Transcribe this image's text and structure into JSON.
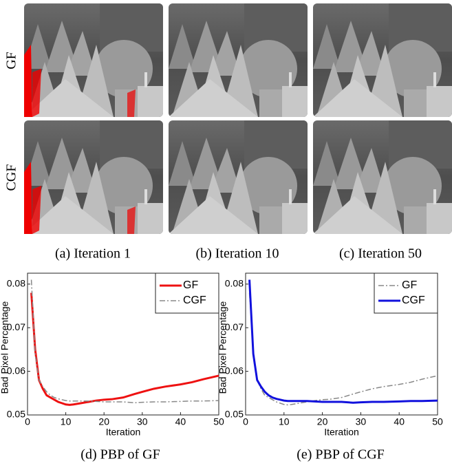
{
  "figure": {
    "row_labels": [
      "GF",
      "CGF"
    ],
    "image_captions": [
      "(a) Iteration 1",
      "(b) Iteration 10",
      "(c) Iteration 50"
    ],
    "chart_captions": [
      "(d) PBP of GF",
      "(e) PBP of CGF"
    ]
  },
  "chart_data": [
    {
      "type": "line",
      "xlabel": "Iteration",
      "ylabel": "Bad Pixel Percentage",
      "x": [
        1,
        2,
        3,
        4,
        5,
        6,
        7,
        8,
        9,
        10,
        11,
        12,
        14,
        16,
        18,
        20,
        22,
        25,
        28,
        30,
        33,
        36,
        40,
        43,
        46,
        50
      ],
      "series": [
        {
          "name": "GF",
          "color": "#ee1111",
          "dash": "solid",
          "width": 3,
          "values": [
            0.078,
            0.065,
            0.058,
            0.056,
            0.0545,
            0.054,
            0.0535,
            0.053,
            0.0527,
            0.0524,
            0.0523,
            0.0524,
            0.0527,
            0.053,
            0.0533,
            0.0535,
            0.0536,
            0.054,
            0.0548,
            0.0553,
            0.056,
            0.0565,
            0.057,
            0.0575,
            0.0582,
            0.059
          ]
        },
        {
          "name": "CGF",
          "color": "#888888",
          "dash": "dashdot",
          "width": 1.5,
          "values": [
            0.081,
            0.064,
            0.058,
            0.0565,
            0.0553,
            0.0545,
            0.054,
            0.0537,
            0.0535,
            0.0533,
            0.0532,
            0.0532,
            0.0532,
            0.0532,
            0.0531,
            0.053,
            0.053,
            0.053,
            0.0528,
            0.0529,
            0.053,
            0.053,
            0.0531,
            0.0532,
            0.0532,
            0.0533
          ]
        }
      ],
      "xlim": [
        0,
        50
      ],
      "xticks": [
        0,
        10,
        20,
        30,
        40,
        50
      ],
      "ylim": [
        0.05,
        0.0825
      ],
      "yticks": [
        0.05,
        0.06,
        0.07,
        0.08
      ],
      "legend": "upper right"
    },
    {
      "type": "line",
      "xlabel": "Iteration",
      "ylabel": "Bad Pixel Percentage",
      "x": [
        1,
        2,
        3,
        4,
        5,
        6,
        7,
        8,
        9,
        10,
        11,
        12,
        14,
        16,
        18,
        20,
        22,
        25,
        28,
        30,
        33,
        36,
        40,
        43,
        46,
        50
      ],
      "series": [
        {
          "name": "GF",
          "color": "#888888",
          "dash": "dashdot",
          "width": 1.5,
          "values": [
            0.078,
            0.065,
            0.058,
            0.056,
            0.0545,
            0.054,
            0.0535,
            0.053,
            0.0527,
            0.0524,
            0.0523,
            0.0524,
            0.0527,
            0.053,
            0.0533,
            0.0535,
            0.0536,
            0.054,
            0.0548,
            0.0553,
            0.056,
            0.0565,
            0.057,
            0.0575,
            0.0582,
            0.059
          ]
        },
        {
          "name": "CGF",
          "color": "#1111dd",
          "dash": "solid",
          "width": 3,
          "values": [
            0.081,
            0.064,
            0.058,
            0.0565,
            0.0553,
            0.0545,
            0.054,
            0.0537,
            0.0535,
            0.0533,
            0.0532,
            0.0532,
            0.0532,
            0.0532,
            0.0531,
            0.053,
            0.053,
            0.053,
            0.0528,
            0.0529,
            0.053,
            0.053,
            0.0531,
            0.0532,
            0.0532,
            0.0533
          ]
        }
      ],
      "xlim": [
        0,
        50
      ],
      "xticks": [
        0,
        10,
        20,
        30,
        40,
        50
      ],
      "ylim": [
        0.05,
        0.0825
      ],
      "yticks": [
        0.05,
        0.06,
        0.07,
        0.08
      ],
      "legend": "upper right"
    }
  ]
}
